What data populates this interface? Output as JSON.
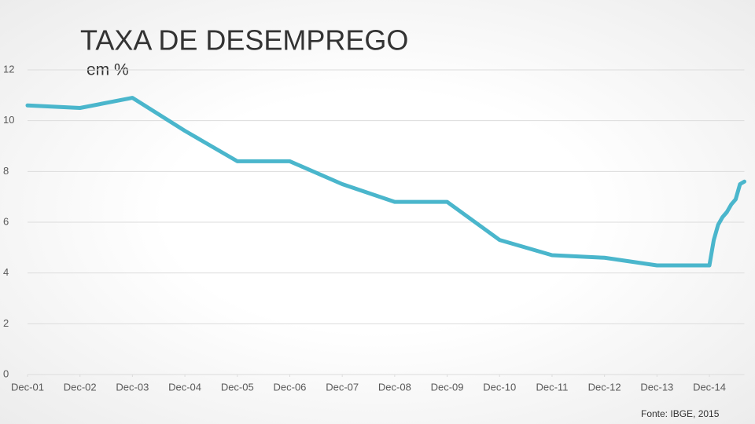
{
  "chart_data": {
    "type": "line",
    "title": "TAXA DE DESEMPREGO",
    "subtitle": "em %",
    "source": "Fonte: IBGE, 2015",
    "x": [
      "2001-12",
      "2002-12",
      "2003-12",
      "2004-12",
      "2005-12",
      "2006-12",
      "2007-12",
      "2008-12",
      "2009-12",
      "2010-12",
      "2011-12",
      "2012-12",
      "2013-12",
      "2014-12",
      "2015-01",
      "2015-02",
      "2015-03",
      "2015-04",
      "2015-05",
      "2015-06",
      "2015-07",
      "2015-08"
    ],
    "series": [
      {
        "name": "Taxa de desemprego",
        "color": "#4ab6cc",
        "values": [
          10.6,
          10.5,
          10.9,
          9.6,
          8.4,
          8.4,
          7.5,
          6.8,
          6.8,
          5.3,
          4.7,
          4.6,
          4.3,
          4.3,
          5.3,
          5.9,
          6.2,
          6.4,
          6.7,
          6.9,
          7.5,
          7.6
        ]
      }
    ],
    "xlim": [
      "2001-12",
      "2015-08"
    ],
    "xticks": [
      {
        "value": "2001-12",
        "label": "Dec-01"
      },
      {
        "value": "2002-12",
        "label": "Dec-02"
      },
      {
        "value": "2003-12",
        "label": "Dec-03"
      },
      {
        "value": "2004-12",
        "label": "Dec-04"
      },
      {
        "value": "2005-12",
        "label": "Dec-05"
      },
      {
        "value": "2006-12",
        "label": "Dec-06"
      },
      {
        "value": "2007-12",
        "label": "Dec-07"
      },
      {
        "value": "2008-12",
        "label": "Dec-08"
      },
      {
        "value": "2009-12",
        "label": "Dec-09"
      },
      {
        "value": "2010-12",
        "label": "Dec-10"
      },
      {
        "value": "2011-12",
        "label": "Dec-11"
      },
      {
        "value": "2012-12",
        "label": "Dec-12"
      },
      {
        "value": "2013-12",
        "label": "Dec-13"
      },
      {
        "value": "2014-12",
        "label": "Dec-14"
      }
    ],
    "ylim": [
      0,
      12
    ],
    "yticks": [
      0,
      2,
      4,
      6,
      8,
      10,
      12
    ],
    "grid": true
  }
}
